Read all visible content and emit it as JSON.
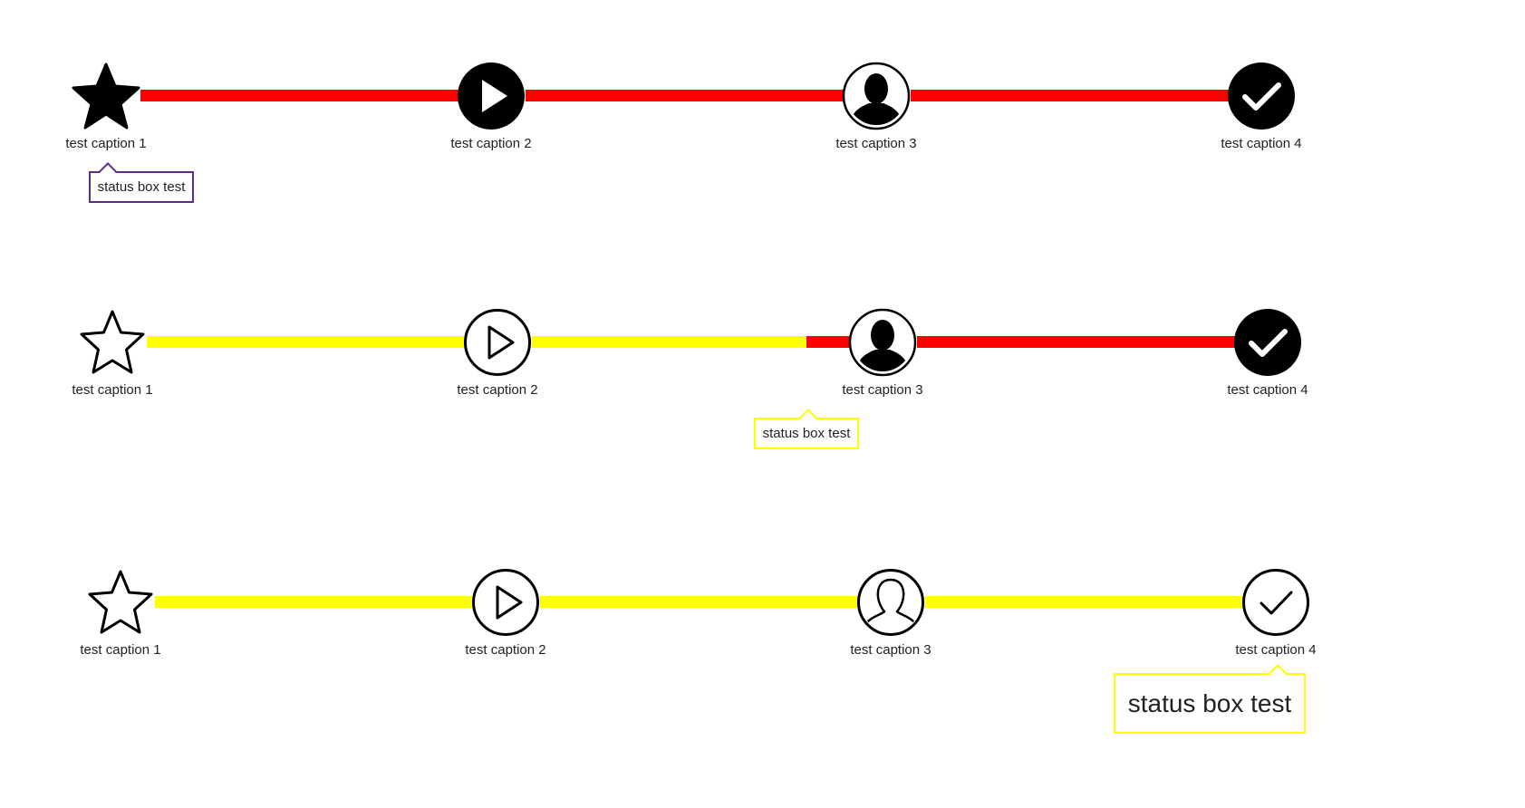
{
  "colors": {
    "red": "#ff0000",
    "yellow": "#ffff00",
    "black": "#000000",
    "purple": "#5b2a8c"
  },
  "rows": [
    {
      "captions": [
        "test caption 1",
        "test caption 2",
        "test caption 3",
        "test caption 4"
      ],
      "status_text": "status box test"
    },
    {
      "captions": [
        "test caption 1",
        "test caption 2",
        "test caption 3",
        "test caption 4"
      ],
      "status_text": "status box test"
    },
    {
      "captions": [
        "test caption 1",
        "test caption 2",
        "test caption 3",
        "test caption 4"
      ],
      "status_text": "status box test"
    }
  ]
}
